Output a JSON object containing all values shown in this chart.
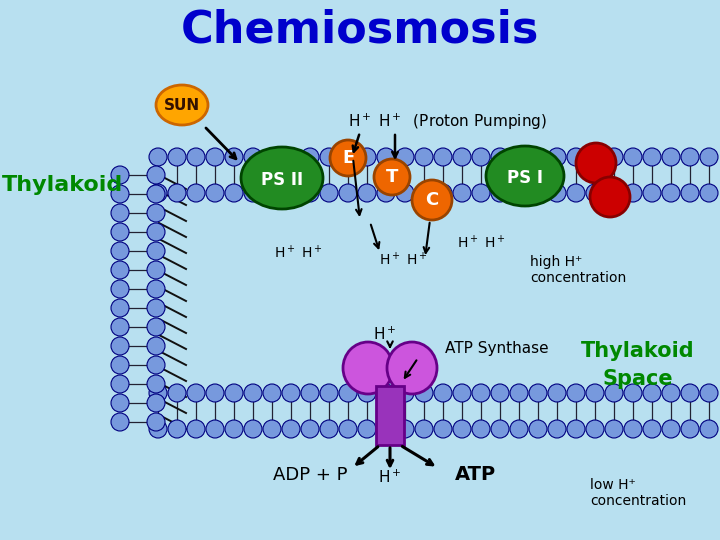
{
  "title": "Chemiosmosis",
  "title_color": "#0000CC",
  "title_fontsize": 32,
  "bg_color": "#B8E0F0",
  "mem_circle_color": "#7799DD",
  "mem_circle_edge": "#000080",
  "thylakoid_label_color": "#008800",
  "sun_color": "#FFA500",
  "sun_edge": "#CC6600",
  "sun_label": "SUN",
  "ps2_color": "#228B22",
  "ps2_edge": "#004400",
  "ps2_label": "PS II",
  "ps1_color": "#228B22",
  "ps1_edge": "#004400",
  "ps1_label": "PS I",
  "e_color": "#EE6600",
  "e_edge": "#994400",
  "e_label": "E",
  "t_color": "#EE6600",
  "t_edge": "#994400",
  "t_label": "T",
  "c_color": "#EE6600",
  "c_edge": "#994400",
  "c_label": "C",
  "red_color": "#CC0000",
  "red_edge": "#880000",
  "atp_upper_color": "#9933BB",
  "atp_lower_color": "#CC55DD",
  "atp_edge": "#660088",
  "atp_synthase_label": "ATP Synthase",
  "adp_label": "ADP + P",
  "atp_label": "ATP",
  "high_h_label": "high H⁺\nconcentration",
  "low_h_label": "low H⁺\nconcentration",
  "thylakoid_space_label": "Thylakoid\nSpace",
  "thylakoid_membrane_label": "Thylakoid",
  "proton_pumping_text": "H⁺ H⁺  (Proton Pumping)"
}
